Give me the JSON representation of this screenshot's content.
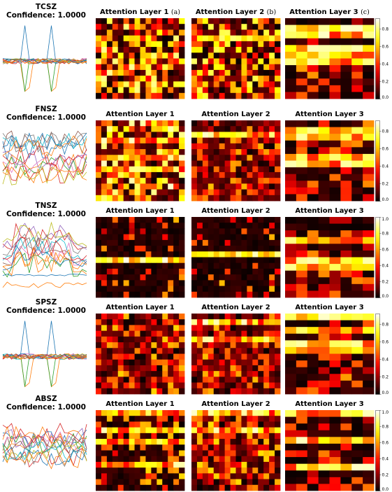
{
  "chart_data": {
    "type": "heatmap",
    "panel_letters": [
      "(a)",
      "(b)",
      "(c)"
    ],
    "colorbar": {
      "colormap": "hot",
      "ticks": [
        "0.0",
        "0.2",
        "0.4",
        "0.6",
        "0.8",
        "1.0"
      ],
      "range": [
        0,
        1
      ]
    },
    "rows": [
      {
        "class_name": "TCSZ",
        "confidence": "Confidence: 1.0000",
        "cbar_max": 0.92,
        "layers": [
          {
            "title": "Attention Layer 1",
            "seed": 11,
            "style": "random",
            "bias": 0.35,
            "hot_rows": []
          },
          {
            "title": "Attention Layer 2",
            "seed": 23,
            "style": "random",
            "bias": 0.3,
            "hot_rows": [
              3
            ]
          },
          {
            "title": "Attention Layer 3",
            "seed": 37,
            "style": "bands",
            "bias": 0.05,
            "hot_rows": [
              1,
              2,
              4,
              5,
              6
            ]
          }
        ],
        "signal_seed": 5,
        "signal_style": "spiky"
      },
      {
        "class_name": "FNSZ",
        "confidence": "Confidence: 1.0000",
        "cbar_max": 0.92,
        "layers": [
          {
            "title": "Attention Layer 1",
            "seed": 41,
            "style": "random",
            "bias": 0.4,
            "hot_rows": [
              3,
              6,
              8
            ]
          },
          {
            "title": "Attention Layer 2",
            "seed": 53,
            "style": "random",
            "bias": 0.1,
            "hot_rows": [
              2
            ]
          },
          {
            "title": "Attention Layer 3",
            "seed": 61,
            "style": "bands",
            "bias": 0.05,
            "hot_rows": [
              1,
              2,
              5,
              6
            ]
          }
        ],
        "signal_seed": 9,
        "signal_style": "noisy"
      },
      {
        "class_name": "TNSZ",
        "confidence": "Confidence: 1.0000",
        "cbar_max": 1.0,
        "layers": [
          {
            "title": "Attention Layer 1",
            "seed": 71,
            "style": "sparse",
            "bias": 0.0,
            "hot_rows": [
              7
            ]
          },
          {
            "title": "Attention Layer 2",
            "seed": 83,
            "style": "sparse",
            "bias": 0.05,
            "hot_rows": [
              6
            ]
          },
          {
            "title": "Attention Layer 3",
            "seed": 97,
            "style": "bands",
            "bias": 0.0,
            "hot_rows": [
              3,
              6,
              7
            ]
          }
        ],
        "signal_seed": 13,
        "signal_style": "block"
      },
      {
        "class_name": "SPSZ",
        "confidence": "Confidence: 1.0000",
        "cbar_max": 0.92,
        "layers": [
          {
            "title": "Attention Layer 1",
            "seed": 101,
            "style": "random",
            "bias": 0.15,
            "hot_rows": []
          },
          {
            "title": "Attention Layer 2",
            "seed": 113,
            "style": "random",
            "bias": 0.1,
            "hot_rows": [
              1,
              4
            ]
          },
          {
            "title": "Attention Layer 3",
            "seed": 127,
            "style": "bands",
            "bias": 0.05,
            "hot_rows": [
              0,
              2,
              4,
              5
            ]
          }
        ],
        "signal_seed": 17,
        "signal_style": "spiky"
      },
      {
        "class_name": "ABSZ",
        "confidence": "Confidence: 1.0000",
        "cbar_max": 1.0,
        "layers": [
          {
            "title": "Attention Layer 1",
            "seed": 131,
            "style": "stripes",
            "bias": 0.1,
            "hot_rows": [
              0,
              3,
              5,
              9
            ]
          },
          {
            "title": "Attention Layer 2",
            "seed": 139,
            "style": "random",
            "bias": 0.15,
            "hot_rows": [
              0,
              3
            ]
          },
          {
            "title": "Attention Layer 3",
            "seed": 149,
            "style": "bands",
            "bias": 0.05,
            "hot_rows": [
              0,
              4,
              8
            ]
          }
        ],
        "signal_seed": 21,
        "signal_style": "noisy"
      }
    ]
  }
}
